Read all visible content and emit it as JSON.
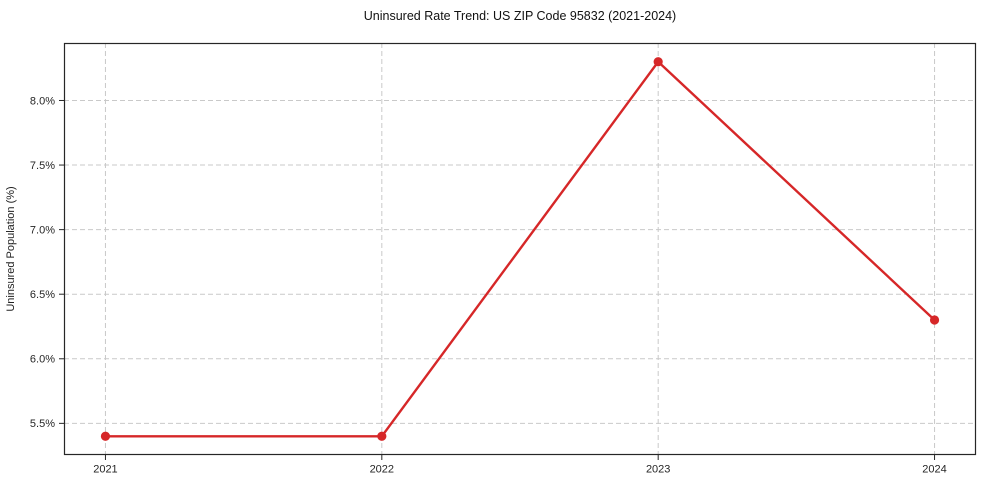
{
  "chart_data": {
    "type": "line",
    "title": "Uninsured Rate Trend: US ZIP Code 95832 (2021-2024)",
    "xlabel": "",
    "ylabel": "Uninsured Population (%)",
    "x": [
      2021,
      2022,
      2023,
      2024
    ],
    "series": [
      {
        "name": "uninsured-rate",
        "values": [
          5.4,
          5.4,
          8.3,
          6.3
        ]
      }
    ],
    "x_tick_labels": [
      "2021",
      "2022",
      "2023",
      "2024"
    ],
    "y_ticks": [
      5.5,
      6.0,
      6.5,
      7.0,
      7.5,
      8.0
    ],
    "y_tick_labels": [
      "5.5%",
      "6.0%",
      "6.5%",
      "7.0%",
      "7.5%",
      "8.0%"
    ],
    "xlim": [
      2020.85,
      2024.15
    ],
    "ylim": [
      5.255,
      8.445
    ],
    "grid": true,
    "grid_line_style": "dashed",
    "legend_position": "none",
    "colors": {
      "line": "#d62728",
      "marker": "#d62728",
      "grid": "#c9c9c9",
      "spine": "#262626",
      "background": "#ffffff"
    },
    "marker_shape": "circle"
  }
}
